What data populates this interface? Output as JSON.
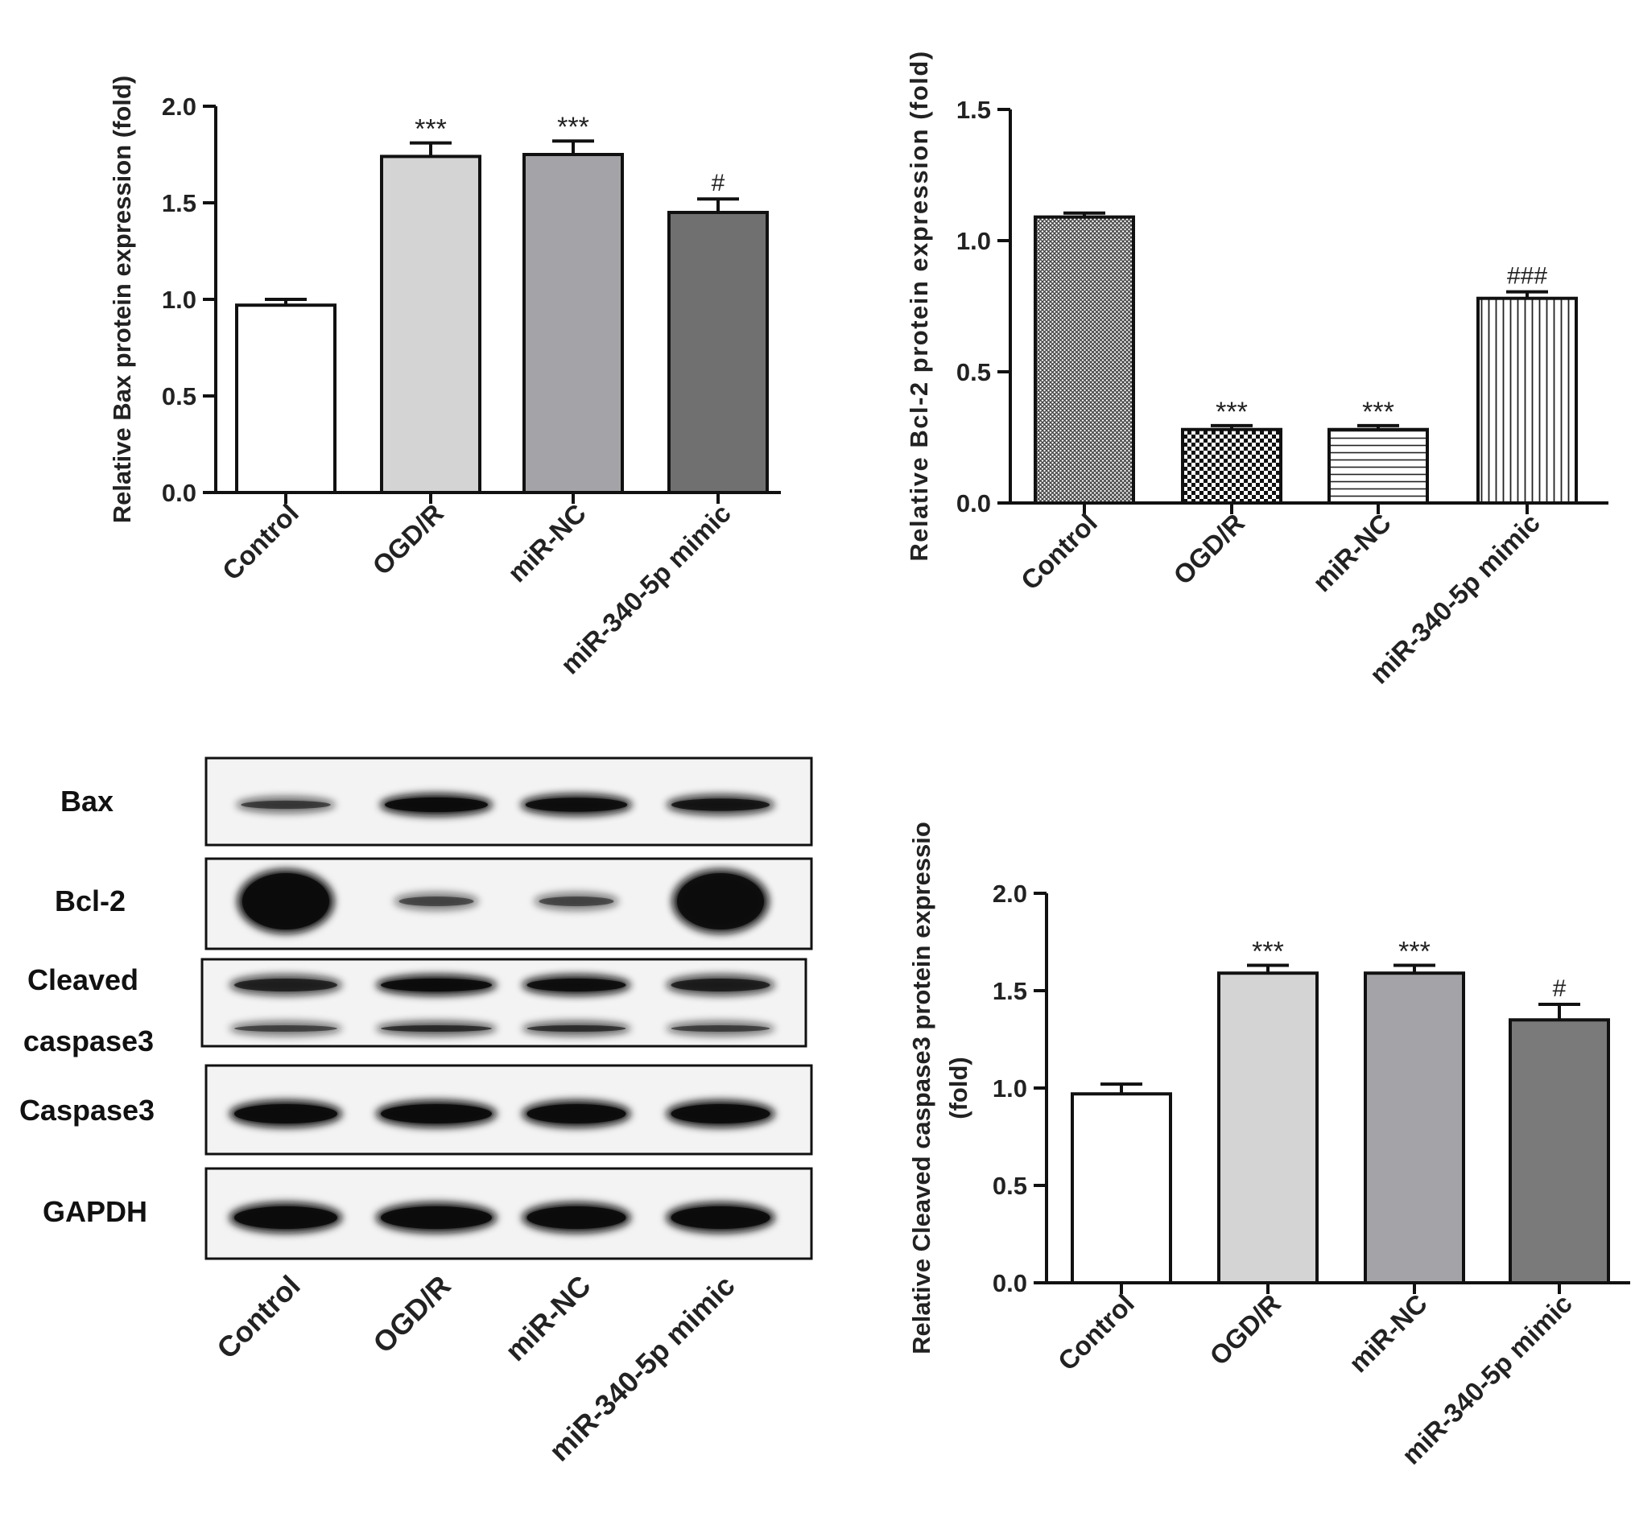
{
  "chart_data": [
    {
      "type": "bar",
      "ylabel": "Relative Bax protein expression (fold)",
      "categories": [
        "Control",
        "OGD/R",
        "miR-NC",
        "miR-340-5p mimic"
      ],
      "values": [
        0.97,
        1.74,
        1.75,
        1.45
      ],
      "errors": [
        0.03,
        0.07,
        0.07,
        0.07
      ],
      "significance": [
        "",
        "***",
        "***",
        "#"
      ],
      "ylim": [
        0,
        2.0
      ],
      "yticks": [
        "0.0",
        "0.5",
        "1.0",
        "1.5",
        "2.0"
      ],
      "bar_fills": [
        "#ffffff",
        "#d4d4d4",
        "#a4a4a8",
        "#707070"
      ],
      "grid": false
    },
    {
      "type": "bar",
      "ylabel": "Relative Bcl-2  protein expression (fold)",
      "categories": [
        "Control",
        "OGD/R",
        "miR-NC",
        "miR-340-5p mimic"
      ],
      "values": [
        1.09,
        0.28,
        0.28,
        0.78
      ],
      "errors": [
        0.015,
        0.015,
        0.015,
        0.025
      ],
      "significance": [
        "",
        "***",
        "***",
        "###"
      ],
      "ylim": [
        0,
        1.5
      ],
      "yticks": [
        "0.0",
        "0.5",
        "1.0",
        "1.5"
      ],
      "bar_patterns": [
        "crosshatch-fine",
        "checkerboard",
        "horizontal-lines",
        "vertical-lines"
      ],
      "grid": false
    },
    {
      "type": "bar",
      "ylabel_line1": "Relative Cleaved caspase3 protein expressio",
      "ylabel_line2": "(fold)",
      "categories": [
        "Control",
        "OGD/R",
        "miR-NC",
        "miR-340-5p mimic"
      ],
      "values": [
        0.97,
        1.59,
        1.59,
        1.35
      ],
      "errors": [
        0.05,
        0.04,
        0.04,
        0.08
      ],
      "significance": [
        "",
        "***",
        "***",
        "#"
      ],
      "ylim": [
        0,
        2.0
      ],
      "yticks": [
        "0.0",
        "0.5",
        "1.0",
        "1.5",
        "2.0"
      ],
      "bar_fills": [
        "#ffffff",
        "#d4d4d4",
        "#a4a4a8",
        "#7a7a7a"
      ],
      "grid": false
    }
  ],
  "western_blot": {
    "labels": [
      "Bax",
      "Bcl-2",
      "Cleaved",
      "caspase3",
      "Caspase3",
      "GAPDH"
    ],
    "lanes": [
      "Control",
      "OGD/R",
      "miR-NC",
      "miR-340-5p mimic"
    ],
    "band_intensity": {
      "Bax": [
        0.45,
        1.0,
        0.95,
        0.8
      ],
      "Bcl-2": [
        1.0,
        0.35,
        0.35,
        0.95
      ],
      "Cleaved caspase3": [
        0.65,
        1.0,
        0.95,
        0.7
      ],
      "Caspase3": [
        1.0,
        1.0,
        1.0,
        1.0
      ],
      "GAPDH": [
        1.0,
        1.0,
        1.0,
        1.0
      ]
    }
  }
}
